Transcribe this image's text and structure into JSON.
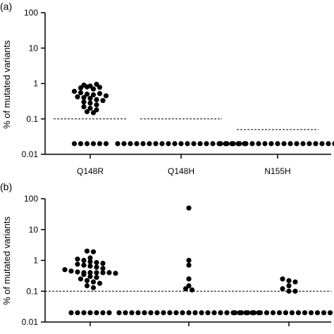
{
  "chart_data": [
    {
      "type": "scatter",
      "panel_label": "(a)",
      "ylabel": "% of mutated variants",
      "yscale": "log",
      "ylim": [
        0.01,
        100
      ],
      "yticks": [
        "0.01",
        "0.1",
        "1",
        "10",
        "100"
      ],
      "categories": [
        "Q148R",
        "Q148H",
        "N155H"
      ],
      "thresholds": [
        0.1,
        0.1,
        0.05
      ],
      "series": [
        {
          "category": "Q148R",
          "values": [
            0.9,
            0.85,
            0.95,
            0.75,
            0.8,
            0.7,
            0.78,
            0.6,
            0.55,
            0.5,
            0.48,
            0.52,
            0.45,
            0.42,
            0.4,
            0.38,
            0.35,
            0.33,
            0.3,
            0.28,
            0.25,
            0.22,
            0.2,
            0.18,
            0.16,
            0.15,
            0.02,
            0.02,
            0.02,
            0.02,
            0.02,
            0.02
          ]
        },
        {
          "category": "Q148H",
          "values": [
            0.02,
            0.02,
            0.02,
            0.02,
            0.02,
            0.02,
            0.02,
            0.02,
            0.02,
            0.02,
            0.02,
            0.02,
            0.02,
            0.02,
            0.02,
            0.02,
            0.02,
            0.02,
            0.02,
            0.02,
            0.02
          ]
        },
        {
          "category": "N155H",
          "values": [
            0.02,
            0.02,
            0.02,
            0.02,
            0.02,
            0.02,
            0.02,
            0.02,
            0.02,
            0.02,
            0.02,
            0.02,
            0.02,
            0.02,
            0.02,
            0.02,
            0.02,
            0.02,
            0.02
          ]
        }
      ]
    },
    {
      "type": "scatter",
      "panel_label": "(b)",
      "ylabel": "% of mutated variants",
      "yscale": "log",
      "ylim": [
        0.01,
        100
      ],
      "yticks": [
        "0.01",
        "0.1",
        "1",
        "10",
        "100"
      ],
      "categories": [
        "",
        "",
        ""
      ],
      "threshold": 0.1,
      "series": [
        {
          "category": "",
          "values": [
            2.0,
            1.9,
            1.2,
            1.1,
            1.0,
            0.9,
            0.85,
            0.8,
            0.75,
            0.7,
            0.65,
            0.6,
            0.55,
            0.5,
            0.45,
            0.42,
            0.4,
            0.4,
            0.4,
            0.4,
            0.4,
            0.38,
            0.35,
            0.3,
            0.28,
            0.25,
            0.22,
            0.2,
            0.18,
            0.15,
            0.13,
            0.02,
            0.02,
            0.02,
            0.02,
            0.02,
            0.02,
            0.02
          ]
        },
        {
          "category": "",
          "values": [
            50,
            1.0,
            0.7,
            0.25,
            0.15,
            0.12,
            0.11,
            0.02,
            0.02,
            0.02,
            0.02,
            0.02,
            0.02,
            0.02,
            0.02,
            0.02,
            0.02,
            0.02,
            0.02,
            0.02,
            0.02,
            0.02,
            0.02,
            0.02,
            0.02,
            0.02,
            0.02,
            0.02,
            0.02,
            0.02
          ]
        },
        {
          "category": "",
          "values": [
            0.25,
            0.22,
            0.2,
            0.15,
            0.12,
            0.1,
            0.1,
            0.02,
            0.02,
            0.02,
            0.02,
            0.02,
            0.02,
            0.02,
            0.02,
            0.02,
            0.02,
            0.02,
            0.02,
            0.02,
            0.02,
            0.02,
            0.02,
            0.02,
            0.02
          ]
        }
      ]
    }
  ]
}
